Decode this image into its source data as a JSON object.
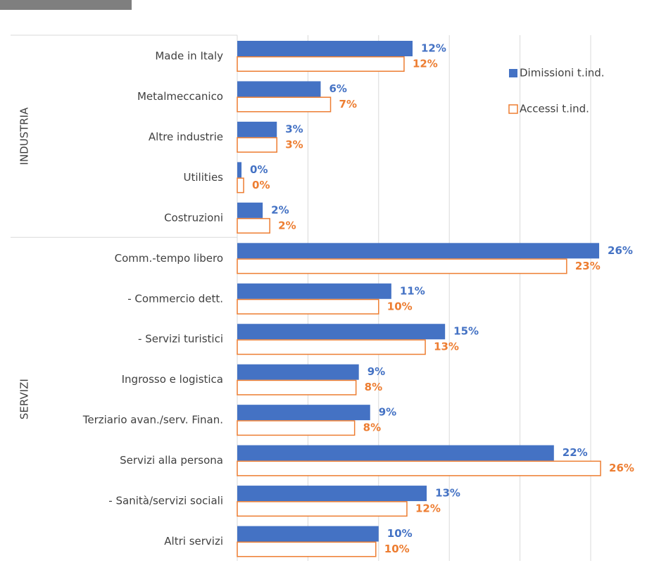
{
  "chart_data": {
    "type": "barh",
    "categories": [
      "Made in Italy",
      "Metalmeccanico",
      "Altre industrie",
      "Utilities",
      "Costruzioni",
      "Comm.-tempo libero",
      "- Commercio dett.",
      "- Servizi turistici",
      "Ingrosso e logistica",
      "Terziario avan./serv. Finan.",
      "Servizi alla persona",
      "- Sanità/servizi sociali",
      "Altri servizi"
    ],
    "category_groups": [
      "INDUSTRIA",
      "INDUSTRIA",
      "INDUSTRIA",
      "INDUSTRIA",
      "INDUSTRIA",
      "SERVIZI",
      "SERVIZI",
      "SERVIZI",
      "SERVIZI",
      "SERVIZI",
      "SERVIZI",
      "SERVIZI",
      "SERVIZI"
    ],
    "series": [
      {
        "name": "Dimissioni t.ind.",
        "color": "#4472c4",
        "fill": true,
        "values": [
          12.4,
          5.9,
          2.8,
          0.3,
          1.8,
          25.6,
          10.9,
          14.7,
          8.6,
          9.4,
          22.4,
          13.4,
          10.0
        ],
        "value_labels": [
          "12%",
          "6%",
          "3%",
          "0%",
          "2%",
          "26%",
          "11%",
          "15%",
          "9%",
          "9%",
          "22%",
          "13%",
          "10%"
        ]
      },
      {
        "name": "Accessi t.ind.",
        "color": "#ed7d31",
        "fill": false,
        "values": [
          11.8,
          6.6,
          2.8,
          0.45,
          2.3,
          23.3,
          10.0,
          13.3,
          8.4,
          8.3,
          25.7,
          12.0,
          9.8
        ],
        "value_labels": [
          "12%",
          "7%",
          "3%",
          "0%",
          "2%",
          "23%",
          "10%",
          "13%",
          "8%",
          "8%",
          "26%",
          "12%",
          "10%"
        ]
      }
    ],
    "xlim": [
      0,
      25
    ],
    "xticks": [
      0,
      5,
      10,
      15,
      20,
      25
    ],
    "grid": true,
    "legend": "right"
  }
}
